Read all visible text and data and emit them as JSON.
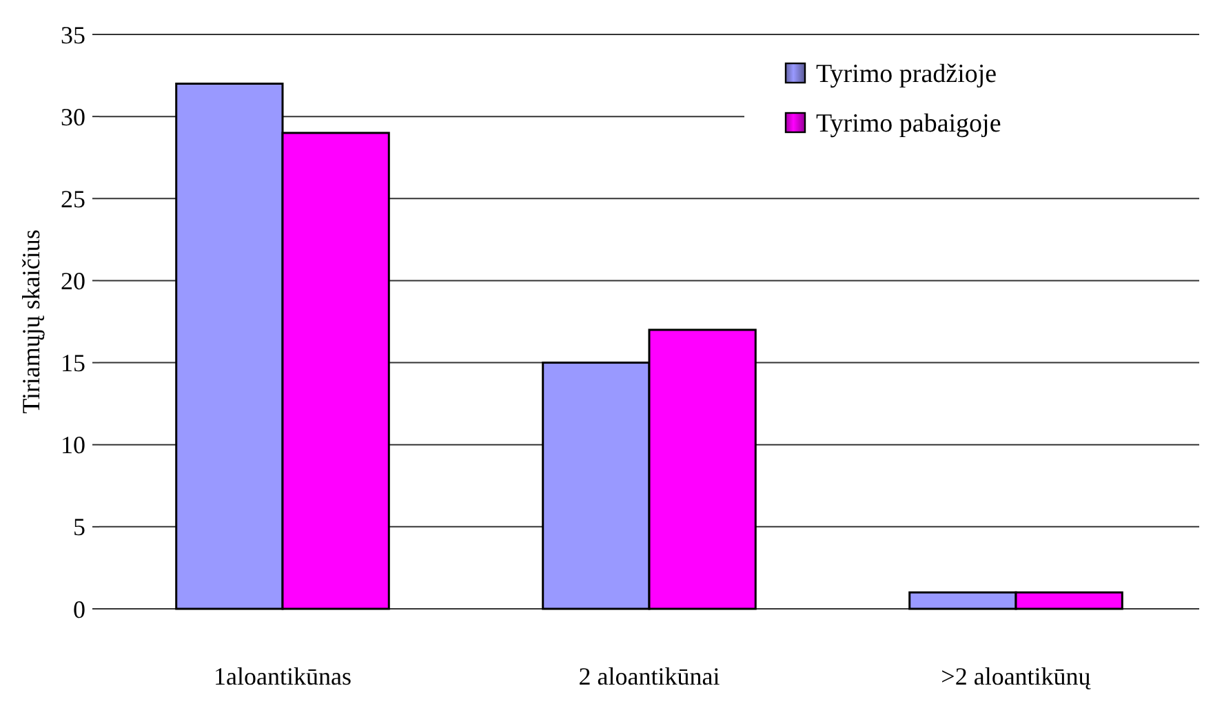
{
  "chart_data": {
    "type": "bar",
    "ylabel": "Tiriamųjų skaičius",
    "categories": [
      "1aloantikūnas",
      "2 aloantikūnai",
      ">2 aloantikūnų"
    ],
    "series": [
      {
        "name": "Tyrimo pradžioje",
        "color": "#9999ff",
        "values": [
          32,
          15,
          1
        ]
      },
      {
        "name": "Tyrimo pabaigoje",
        "color": "#ff00ff",
        "values": [
          29,
          17,
          1
        ]
      }
    ],
    "ylim": [
      0,
      35
    ],
    "yticks": [
      0,
      5,
      10,
      15,
      20,
      25,
      30,
      35
    ],
    "grid": "y",
    "legend": "top right"
  }
}
